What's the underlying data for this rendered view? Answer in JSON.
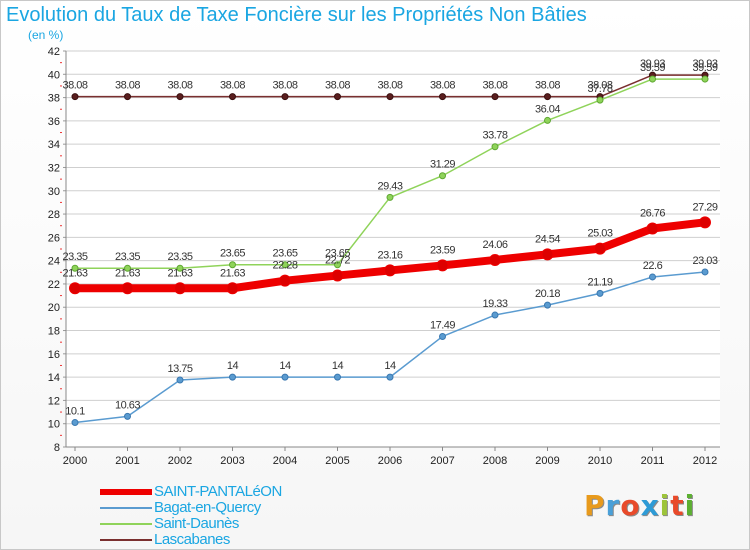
{
  "title": "Evolution du Taux de Taxe Foncière sur les Propriétés Non Bâties",
  "subtitle": "(en %)",
  "logo": {
    "text": "Proxiti",
    "colors": [
      "#e89a1c",
      "#4aa0d8",
      "#e84a2a",
      "#2e9bd6",
      "#9dc43a",
      "#e84a2a",
      "#5cb031"
    ]
  },
  "chart_data": {
    "type": "line",
    "title": "Evolution du Taux de Taxe Foncière sur les Propriétés Non Bâties",
    "ylabel": "(en %)",
    "xlabel": "",
    "ylim": [
      8,
      42
    ],
    "yticks": [
      8,
      10,
      12,
      14,
      16,
      18,
      20,
      22,
      24,
      26,
      28,
      30,
      32,
      34,
      36,
      38,
      40,
      42
    ],
    "grid": true,
    "legend": "bottom-left",
    "x": [
      "2000",
      "2001",
      "2002",
      "2003",
      "2004",
      "2005",
      "2006",
      "2007",
      "2008",
      "2009",
      "2010",
      "2011",
      "2012"
    ],
    "series": [
      {
        "name": "SAINT-PANTALéON",
        "color": "#ee0000",
        "values": [
          21.63,
          21.63,
          21.63,
          21.63,
          22.28,
          22.72,
          23.16,
          23.59,
          24.06,
          24.54,
          25.03,
          26.76,
          27.29
        ],
        "labels": [
          "21.63",
          "21.63",
          "21.63",
          "21.63",
          "22.28",
          "22.72",
          "23.16",
          "23.59",
          "24.06",
          "24.54",
          "25.03",
          "26.76",
          "27.29"
        ]
      },
      {
        "name": "Bagat-en-Quercy",
        "color": "#5a9bd0",
        "values": [
          10.1,
          10.63,
          13.75,
          14,
          14,
          14,
          14,
          17.49,
          19.33,
          20.18,
          21.19,
          22.6,
          23.03
        ],
        "labels": [
          "10.1",
          "10.63",
          "13.75",
          "14",
          "14",
          "14",
          "14",
          "17.49",
          "19.33",
          "20.18",
          "21.19",
          "22.6",
          "23.03"
        ]
      },
      {
        "name": "Saint-Daunès",
        "color": "#8fd35a",
        "values": [
          23.35,
          23.35,
          23.35,
          23.65,
          23.65,
          23.65,
          29.43,
          31.29,
          33.78,
          36.04,
          37.78,
          39.59,
          39.59
        ],
        "labels": [
          "23.35",
          "23.35",
          "23.35",
          "23.65",
          "23.65",
          "23.65",
          "29.43",
          "31.29",
          "33.78",
          "36.04",
          "37.78",
          "39.59",
          "39.59"
        ]
      },
      {
        "name": "Lascabanes",
        "color": "#7a2f2f",
        "values": [
          38.08,
          38.08,
          38.08,
          38.08,
          38.08,
          38.08,
          38.08,
          38.08,
          38.08,
          38.08,
          38.08,
          39.93,
          39.93
        ],
        "labels": [
          "38.08",
          "38.08",
          "38.08",
          "38.08",
          "38.08",
          "38.08",
          "38.08",
          "38.08",
          "38.08",
          "38.08",
          "38.08",
          "39.93",
          "39.93"
        ]
      }
    ]
  }
}
